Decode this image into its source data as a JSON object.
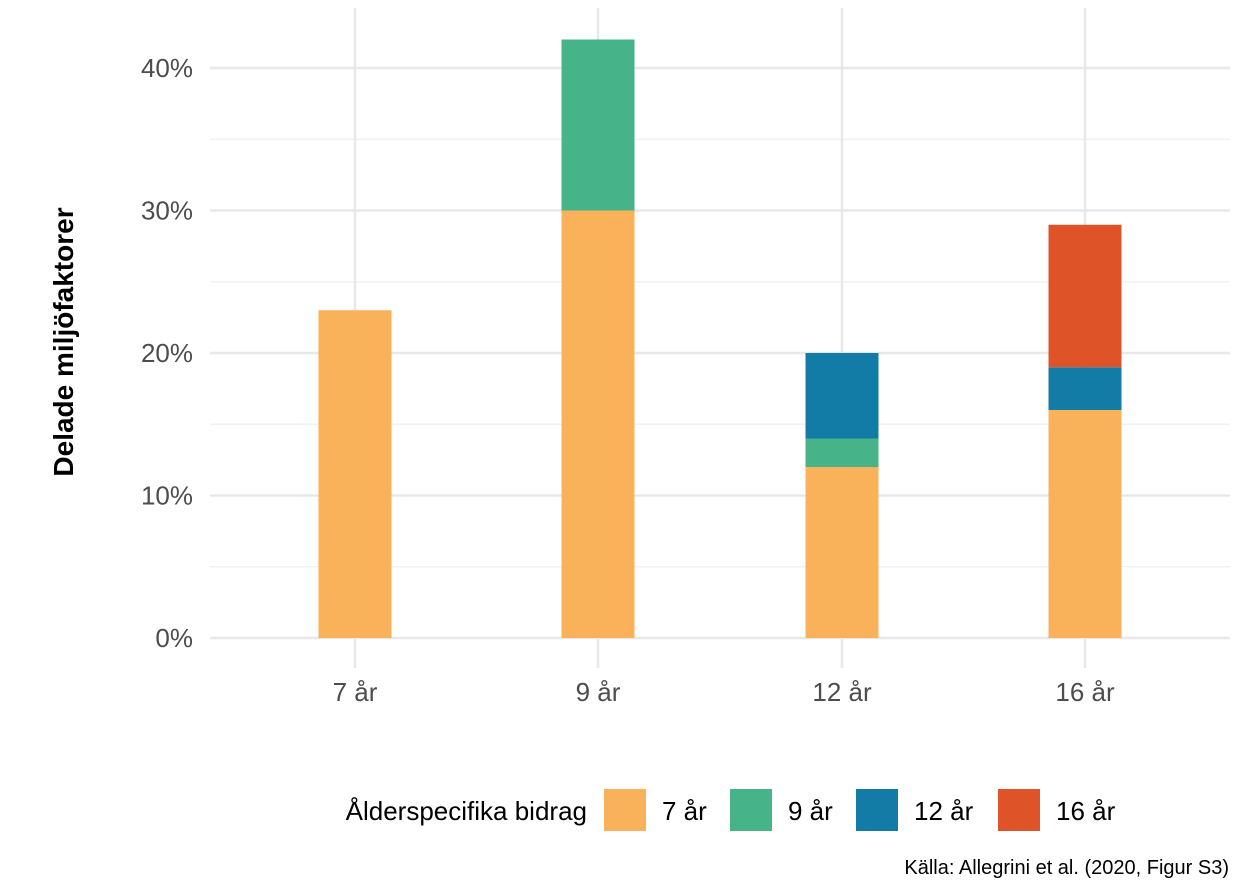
{
  "chart_data": {
    "type": "bar",
    "stacked": true,
    "categories": [
      "7 år",
      "9 år",
      "12 år",
      "16 år"
    ],
    "series": [
      {
        "name": "7 år",
        "color": "#F9B25A",
        "values": [
          23,
          30,
          12,
          16
        ]
      },
      {
        "name": "9 år",
        "color": "#46B388",
        "values": [
          0,
          12,
          2,
          0
        ]
      },
      {
        "name": "12 år",
        "color": "#137CA6",
        "values": [
          0,
          0,
          6,
          3
        ]
      },
      {
        "name": "16 år",
        "color": "#DF5329",
        "values": [
          0,
          0,
          0,
          10
        ]
      }
    ],
    "ylabel": "Delade miljöfaktorer",
    "ylim": [
      0,
      42
    ],
    "yticks": [
      0,
      10,
      20,
      30,
      40
    ],
    "ytick_labels": [
      "0%",
      "10%",
      "20%",
      "30%",
      "40%"
    ],
    "grid": true,
    "legend": {
      "title": "Ålderspecifika bidrag",
      "position": "bottom"
    },
    "caption": "Källa: Allegrini et al. (2020, Figur S3)"
  }
}
